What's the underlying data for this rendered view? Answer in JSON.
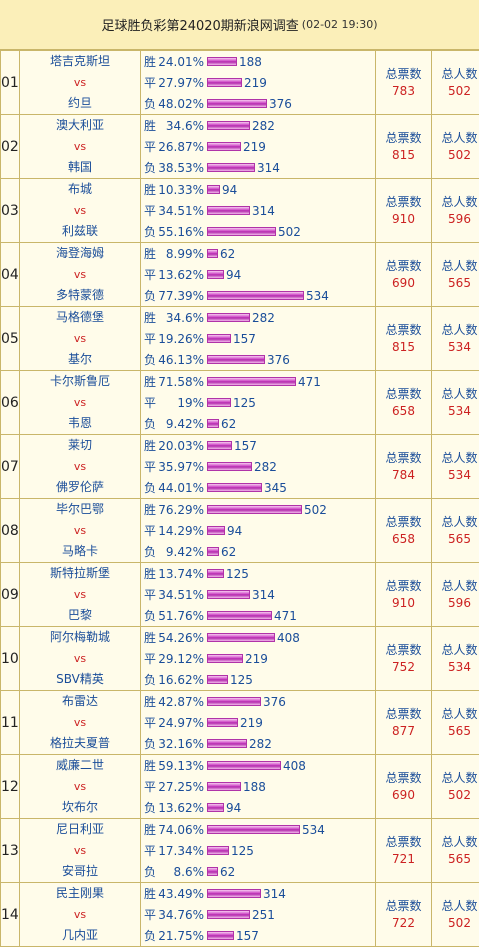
{
  "title": "足球胜负彩第24020期新浪网调查",
  "timestamp": "(02-02 19:30)",
  "labels": {
    "win": "胜",
    "draw": "平",
    "lose": "负",
    "vs": "vs",
    "total_votes": "总票数",
    "total_people": "总人数"
  },
  "matches": [
    {
      "no": "01",
      "home": "塔吉克斯坦",
      "away": "约旦",
      "win": {
        "pct": "24.01%",
        "count": "188"
      },
      "draw": {
        "pct": "27.97%",
        "count": "219"
      },
      "lose": {
        "pct": "48.02%",
        "count": "376"
      },
      "votes": "783",
      "people": "502"
    },
    {
      "no": "02",
      "home": "澳大利亚",
      "away": "韩国",
      "win": {
        "pct": "34.6%",
        "count": "282"
      },
      "draw": {
        "pct": "26.87%",
        "count": "219"
      },
      "lose": {
        "pct": "38.53%",
        "count": "314"
      },
      "votes": "815",
      "people": "502"
    },
    {
      "no": "03",
      "home": "布城",
      "away": "利兹联",
      "win": {
        "pct": "10.33%",
        "count": "94"
      },
      "draw": {
        "pct": "34.51%",
        "count": "314"
      },
      "lose": {
        "pct": "55.16%",
        "count": "502"
      },
      "votes": "910",
      "people": "596"
    },
    {
      "no": "04",
      "home": "海登海姆",
      "away": "多特蒙德",
      "win": {
        "pct": "8.99%",
        "count": "62"
      },
      "draw": {
        "pct": "13.62%",
        "count": "94"
      },
      "lose": {
        "pct": "77.39%",
        "count": "534"
      },
      "votes": "690",
      "people": "565"
    },
    {
      "no": "05",
      "home": "马格德堡",
      "away": "基尔",
      "win": {
        "pct": "34.6%",
        "count": "282"
      },
      "draw": {
        "pct": "19.26%",
        "count": "157"
      },
      "lose": {
        "pct": "46.13%",
        "count": "376"
      },
      "votes": "815",
      "people": "534"
    },
    {
      "no": "06",
      "home": "卡尔斯鲁厄",
      "away": "韦恩",
      "win": {
        "pct": "71.58%",
        "count": "471"
      },
      "draw": {
        "pct": "19%",
        "count": "125"
      },
      "lose": {
        "pct": "9.42%",
        "count": "62"
      },
      "votes": "658",
      "people": "534"
    },
    {
      "no": "07",
      "home": "莱切",
      "away": "佛罗伦萨",
      "win": {
        "pct": "20.03%",
        "count": "157"
      },
      "draw": {
        "pct": "35.97%",
        "count": "282"
      },
      "lose": {
        "pct": "44.01%",
        "count": "345"
      },
      "votes": "784",
      "people": "534"
    },
    {
      "no": "08",
      "home": "毕尔巴鄂",
      "away": "马略卡",
      "win": {
        "pct": "76.29%",
        "count": "502"
      },
      "draw": {
        "pct": "14.29%",
        "count": "94"
      },
      "lose": {
        "pct": "9.42%",
        "count": "62"
      },
      "votes": "658",
      "people": "565"
    },
    {
      "no": "09",
      "home": "斯特拉斯堡",
      "away": "巴黎",
      "win": {
        "pct": "13.74%",
        "count": "125"
      },
      "draw": {
        "pct": "34.51%",
        "count": "314"
      },
      "lose": {
        "pct": "51.76%",
        "count": "471"
      },
      "votes": "910",
      "people": "596"
    },
    {
      "no": "10",
      "home": "阿尔梅勒城",
      "away": "SBV精英",
      "win": {
        "pct": "54.26%",
        "count": "408"
      },
      "draw": {
        "pct": "29.12%",
        "count": "219"
      },
      "lose": {
        "pct": "16.62%",
        "count": "125"
      },
      "votes": "752",
      "people": "534"
    },
    {
      "no": "11",
      "home": "布雷达",
      "away": "格拉夫夏普",
      "win": {
        "pct": "42.87%",
        "count": "376"
      },
      "draw": {
        "pct": "24.97%",
        "count": "219"
      },
      "lose": {
        "pct": "32.16%",
        "count": "282"
      },
      "votes": "877",
      "people": "565"
    },
    {
      "no": "12",
      "home": "威廉二世",
      "away": "坎布尔",
      "win": {
        "pct": "59.13%",
        "count": "408"
      },
      "draw": {
        "pct": "27.25%",
        "count": "188"
      },
      "lose": {
        "pct": "13.62%",
        "count": "94"
      },
      "votes": "690",
      "people": "502"
    },
    {
      "no": "13",
      "home": "尼日利亚",
      "away": "安哥拉",
      "win": {
        "pct": "74.06%",
        "count": "534"
      },
      "draw": {
        "pct": "17.34%",
        "count": "125"
      },
      "lose": {
        "pct": "8.6%",
        "count": "62"
      },
      "votes": "721",
      "people": "565"
    },
    {
      "no": "14",
      "home": "民主刚果",
      "away": "几内亚",
      "win": {
        "pct": "43.49%",
        "count": "314"
      },
      "draw": {
        "pct": "34.76%",
        "count": "251"
      },
      "lose": {
        "pct": "21.75%",
        "count": "157"
      },
      "votes": "722",
      "people": "502"
    }
  ]
}
